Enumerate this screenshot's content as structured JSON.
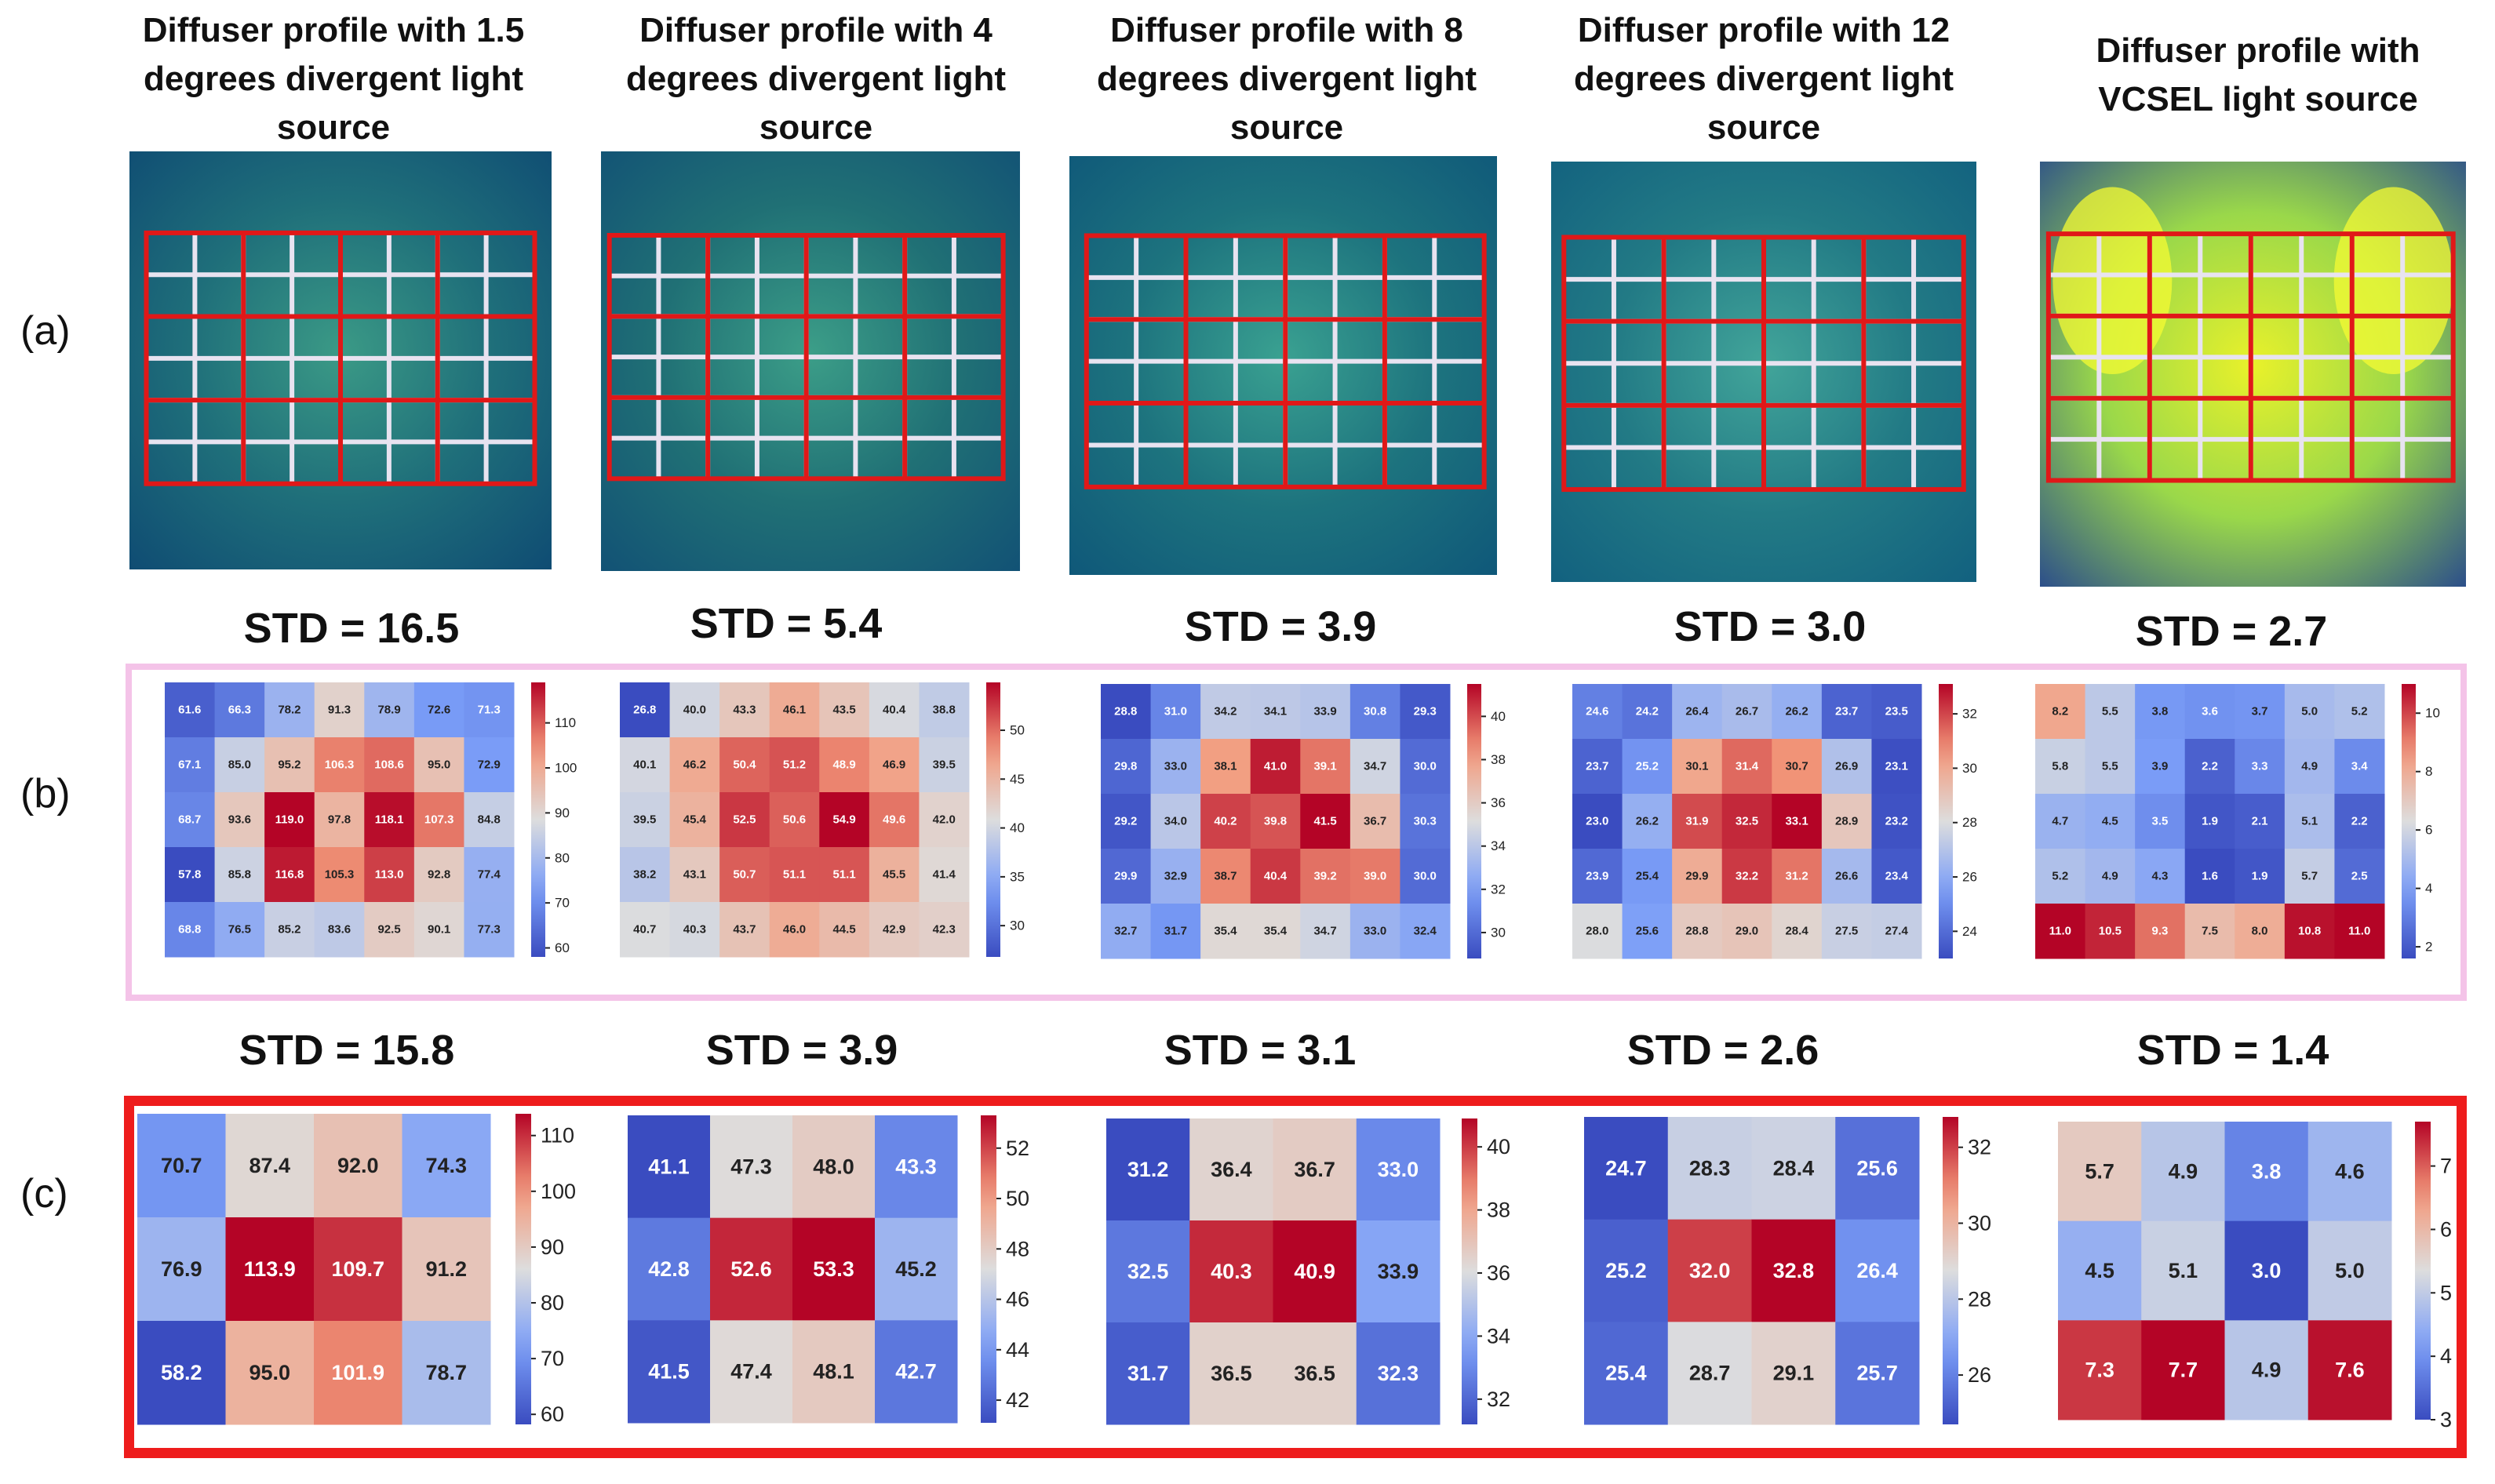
{
  "row_labels": [
    "(a)",
    "(b)",
    "(c)"
  ],
  "chart_data": [
    {
      "panel": "a",
      "type": "image",
      "title": "Diffuser profile with 1.5 degrees divergent light source"
    },
    {
      "panel": "a",
      "type": "image",
      "title": "Diffuser profile with 4 degrees divergent light source"
    },
    {
      "panel": "a",
      "type": "image",
      "title": "Diffuser profile with 8 degrees divergent light source"
    },
    {
      "panel": "a",
      "type": "image",
      "title": "Diffuser profile with 12 degrees divergent light source"
    },
    {
      "panel": "a",
      "type": "image",
      "title": "Diffuser profile with VCSEL light source"
    },
    {
      "panel": "b",
      "type": "heatmap",
      "title": "STD = 16.5",
      "vmin": 58,
      "vmax": 119,
      "colorbar_ticks": [
        60,
        70,
        80,
        90,
        100,
        110
      ],
      "values": [
        [
          61.6,
          66.3,
          78.2,
          91.3,
          78.9,
          72.6,
          71.3
        ],
        [
          67.1,
          85.0,
          95.2,
          106.3,
          108.6,
          95.0,
          72.9
        ],
        [
          68.7,
          93.6,
          119.0,
          97.8,
          118.1,
          107.3,
          84.8
        ],
        [
          57.8,
          85.8,
          116.8,
          105.3,
          113.0,
          92.8,
          77.4
        ],
        [
          68.8,
          76.5,
          85.2,
          83.6,
          92.5,
          90.1,
          77.3
        ]
      ]
    },
    {
      "panel": "b",
      "type": "heatmap",
      "title": "STD = 5.4",
      "vmin": 26.8,
      "vmax": 54.9,
      "colorbar_ticks": [
        30,
        35,
        40,
        45,
        50
      ],
      "values": [
        [
          26.8,
          40.0,
          43.3,
          46.1,
          43.5,
          40.4,
          38.8
        ],
        [
          40.1,
          46.2,
          50.4,
          51.2,
          48.9,
          46.9,
          39.5
        ],
        [
          39.5,
          45.4,
          52.5,
          50.6,
          54.9,
          49.6,
          42.0
        ],
        [
          38.2,
          43.1,
          50.7,
          51.1,
          51.1,
          45.5,
          41.4
        ],
        [
          40.7,
          40.3,
          43.7,
          46.0,
          44.5,
          42.9,
          42.3
        ]
      ]
    },
    {
      "panel": "b",
      "type": "heatmap",
      "title": "STD = 3.9",
      "vmin": 28.8,
      "vmax": 41.5,
      "colorbar_ticks": [
        30,
        32,
        34,
        36,
        38,
        40
      ],
      "values": [
        [
          28.8,
          31.0,
          34.2,
          34.1,
          33.9,
          30.8,
          29.3
        ],
        [
          29.8,
          33.0,
          38.1,
          41.0,
          39.1,
          34.7,
          30.0
        ],
        [
          29.2,
          34.0,
          40.2,
          39.8,
          41.5,
          36.7,
          30.3
        ],
        [
          29.9,
          32.9,
          38.7,
          40.4,
          39.2,
          39.0,
          30.0
        ],
        [
          32.7,
          31.7,
          35.4,
          35.4,
          34.7,
          33.0,
          32.4
        ]
      ]
    },
    {
      "panel": "b",
      "type": "heatmap",
      "title": "STD = 3.0",
      "vmin": 23.0,
      "vmax": 33.1,
      "colorbar_ticks": [
        24,
        26,
        28,
        30,
        32
      ],
      "values": [
        [
          24.6,
          24.2,
          26.4,
          26.7,
          26.2,
          23.7,
          23.5
        ],
        [
          23.7,
          25.2,
          30.1,
          31.4,
          30.7,
          26.9,
          23.1
        ],
        [
          23.0,
          26.2,
          31.9,
          32.5,
          33.1,
          28.9,
          23.2
        ],
        [
          23.9,
          25.4,
          29.9,
          32.2,
          31.2,
          26.6,
          23.4
        ],
        [
          28.0,
          25.6,
          28.8,
          29.0,
          28.4,
          27.5,
          27.4
        ]
      ]
    },
    {
      "panel": "b",
      "type": "heatmap",
      "title": "STD = 2.7",
      "vmin": 1.6,
      "vmax": 11.0,
      "colorbar_ticks": [
        2,
        4,
        6,
        8,
        10
      ],
      "values": [
        [
          8.2,
          5.5,
          3.8,
          3.6,
          3.7,
          5.0,
          5.2
        ],
        [
          5.8,
          5.5,
          3.9,
          2.2,
          3.3,
          4.9,
          3.4
        ],
        [
          4.7,
          4.5,
          3.5,
          1.9,
          2.1,
          5.1,
          2.2
        ],
        [
          5.2,
          4.9,
          4.3,
          1.6,
          1.9,
          5.7,
          2.5
        ],
        [
          11.0,
          10.5,
          9.3,
          7.5,
          8.0,
          10.8,
          11.0
        ]
      ]
    },
    {
      "panel": "c",
      "type": "heatmap",
      "title": "STD = 15.8",
      "vmin": 58.2,
      "vmax": 113.9,
      "colorbar_ticks": [
        60,
        70,
        80,
        90,
        100,
        110
      ],
      "values": [
        [
          70.7,
          87.4,
          92.0,
          74.3
        ],
        [
          76.9,
          113.9,
          109.7,
          91.2
        ],
        [
          58.2,
          95.0,
          101.9,
          78.7
        ]
      ]
    },
    {
      "panel": "c",
      "type": "heatmap",
      "title": "STD = 3.9",
      "vmin": 41.1,
      "vmax": 53.3,
      "colorbar_ticks": [
        42,
        44,
        46,
        48,
        50,
        52
      ],
      "values": [
        [
          41.1,
          47.3,
          48.0,
          43.3
        ],
        [
          42.8,
          52.6,
          53.3,
          45.2
        ],
        [
          41.5,
          47.4,
          48.1,
          42.7
        ]
      ]
    },
    {
      "panel": "c",
      "type": "heatmap",
      "title": "STD = 3.1",
      "vmin": 31.2,
      "vmax": 40.9,
      "colorbar_ticks": [
        32,
        34,
        36,
        38,
        40
      ],
      "values": [
        [
          31.2,
          36.4,
          36.7,
          33.0
        ],
        [
          32.5,
          40.3,
          40.9,
          33.9
        ],
        [
          31.7,
          36.5,
          36.5,
          32.3
        ]
      ]
    },
    {
      "panel": "c",
      "type": "heatmap",
      "title": "STD = 2.6",
      "vmin": 24.7,
      "vmax": 32.8,
      "colorbar_ticks": [
        26,
        28,
        30,
        32
      ],
      "values": [
        [
          24.7,
          28.3,
          28.4,
          25.6
        ],
        [
          25.2,
          32.0,
          32.8,
          26.4
        ],
        [
          25.4,
          28.7,
          29.1,
          25.7
        ]
      ]
    },
    {
      "panel": "c",
      "type": "heatmap",
      "title": "STD = 1.4",
      "vmin": 3.0,
      "vmax": 7.7,
      "colorbar_ticks": [
        3,
        4,
        5,
        6,
        7
      ],
      "values": [
        [
          5.7,
          4.9,
          3.8,
          4.6
        ],
        [
          4.5,
          5.1,
          3.0,
          5.0
        ],
        [
          7.3,
          7.7,
          4.9,
          7.6
        ]
      ]
    }
  ]
}
